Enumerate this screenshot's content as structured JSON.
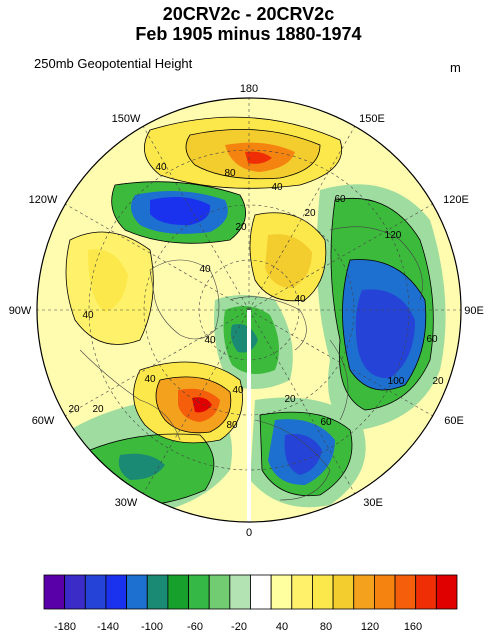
{
  "title_line1": "20CRV2c - 20CRV2c",
  "title_line2": "Feb 1905 minus 1880-1974",
  "subtitle": "250mb Geopotential Height",
  "units": "m",
  "longitude_labels": [
    "180",
    "150E",
    "120E",
    "90E",
    "60E",
    "30E",
    "0",
    "30W",
    "60W",
    "90W",
    "120W",
    "150W"
  ],
  "contour_labels": [
    "40",
    "80",
    "40",
    "20",
    "60",
    "20",
    "120",
    "40",
    "40",
    "40",
    "40",
    "20",
    "100",
    "60",
    "20",
    "40",
    "20",
    "60",
    "80",
    "20",
    "40"
  ],
  "colorbar": {
    "ticks": [
      "-180",
      "-140",
      "-100",
      "-60",
      "-20",
      "40",
      "80",
      "120",
      "160"
    ],
    "colors": [
      "#5a00a8",
      "#3b2bc7",
      "#2543d6",
      "#1a32ee",
      "#1d6fd0",
      "#1a8a74",
      "#18a02c",
      "#36b846",
      "#72cd72",
      "#b3e3b3",
      "#ffffff",
      "#ffffa0",
      "#fff26a",
      "#fde84b",
      "#f3cd2e",
      "#f4a11e",
      "#f48310",
      "#f55e0a",
      "#ef2e06",
      "#e00000"
    ]
  },
  "map": {
    "projection": "north polar stereographic",
    "background_color": "#fffcb0"
  }
}
